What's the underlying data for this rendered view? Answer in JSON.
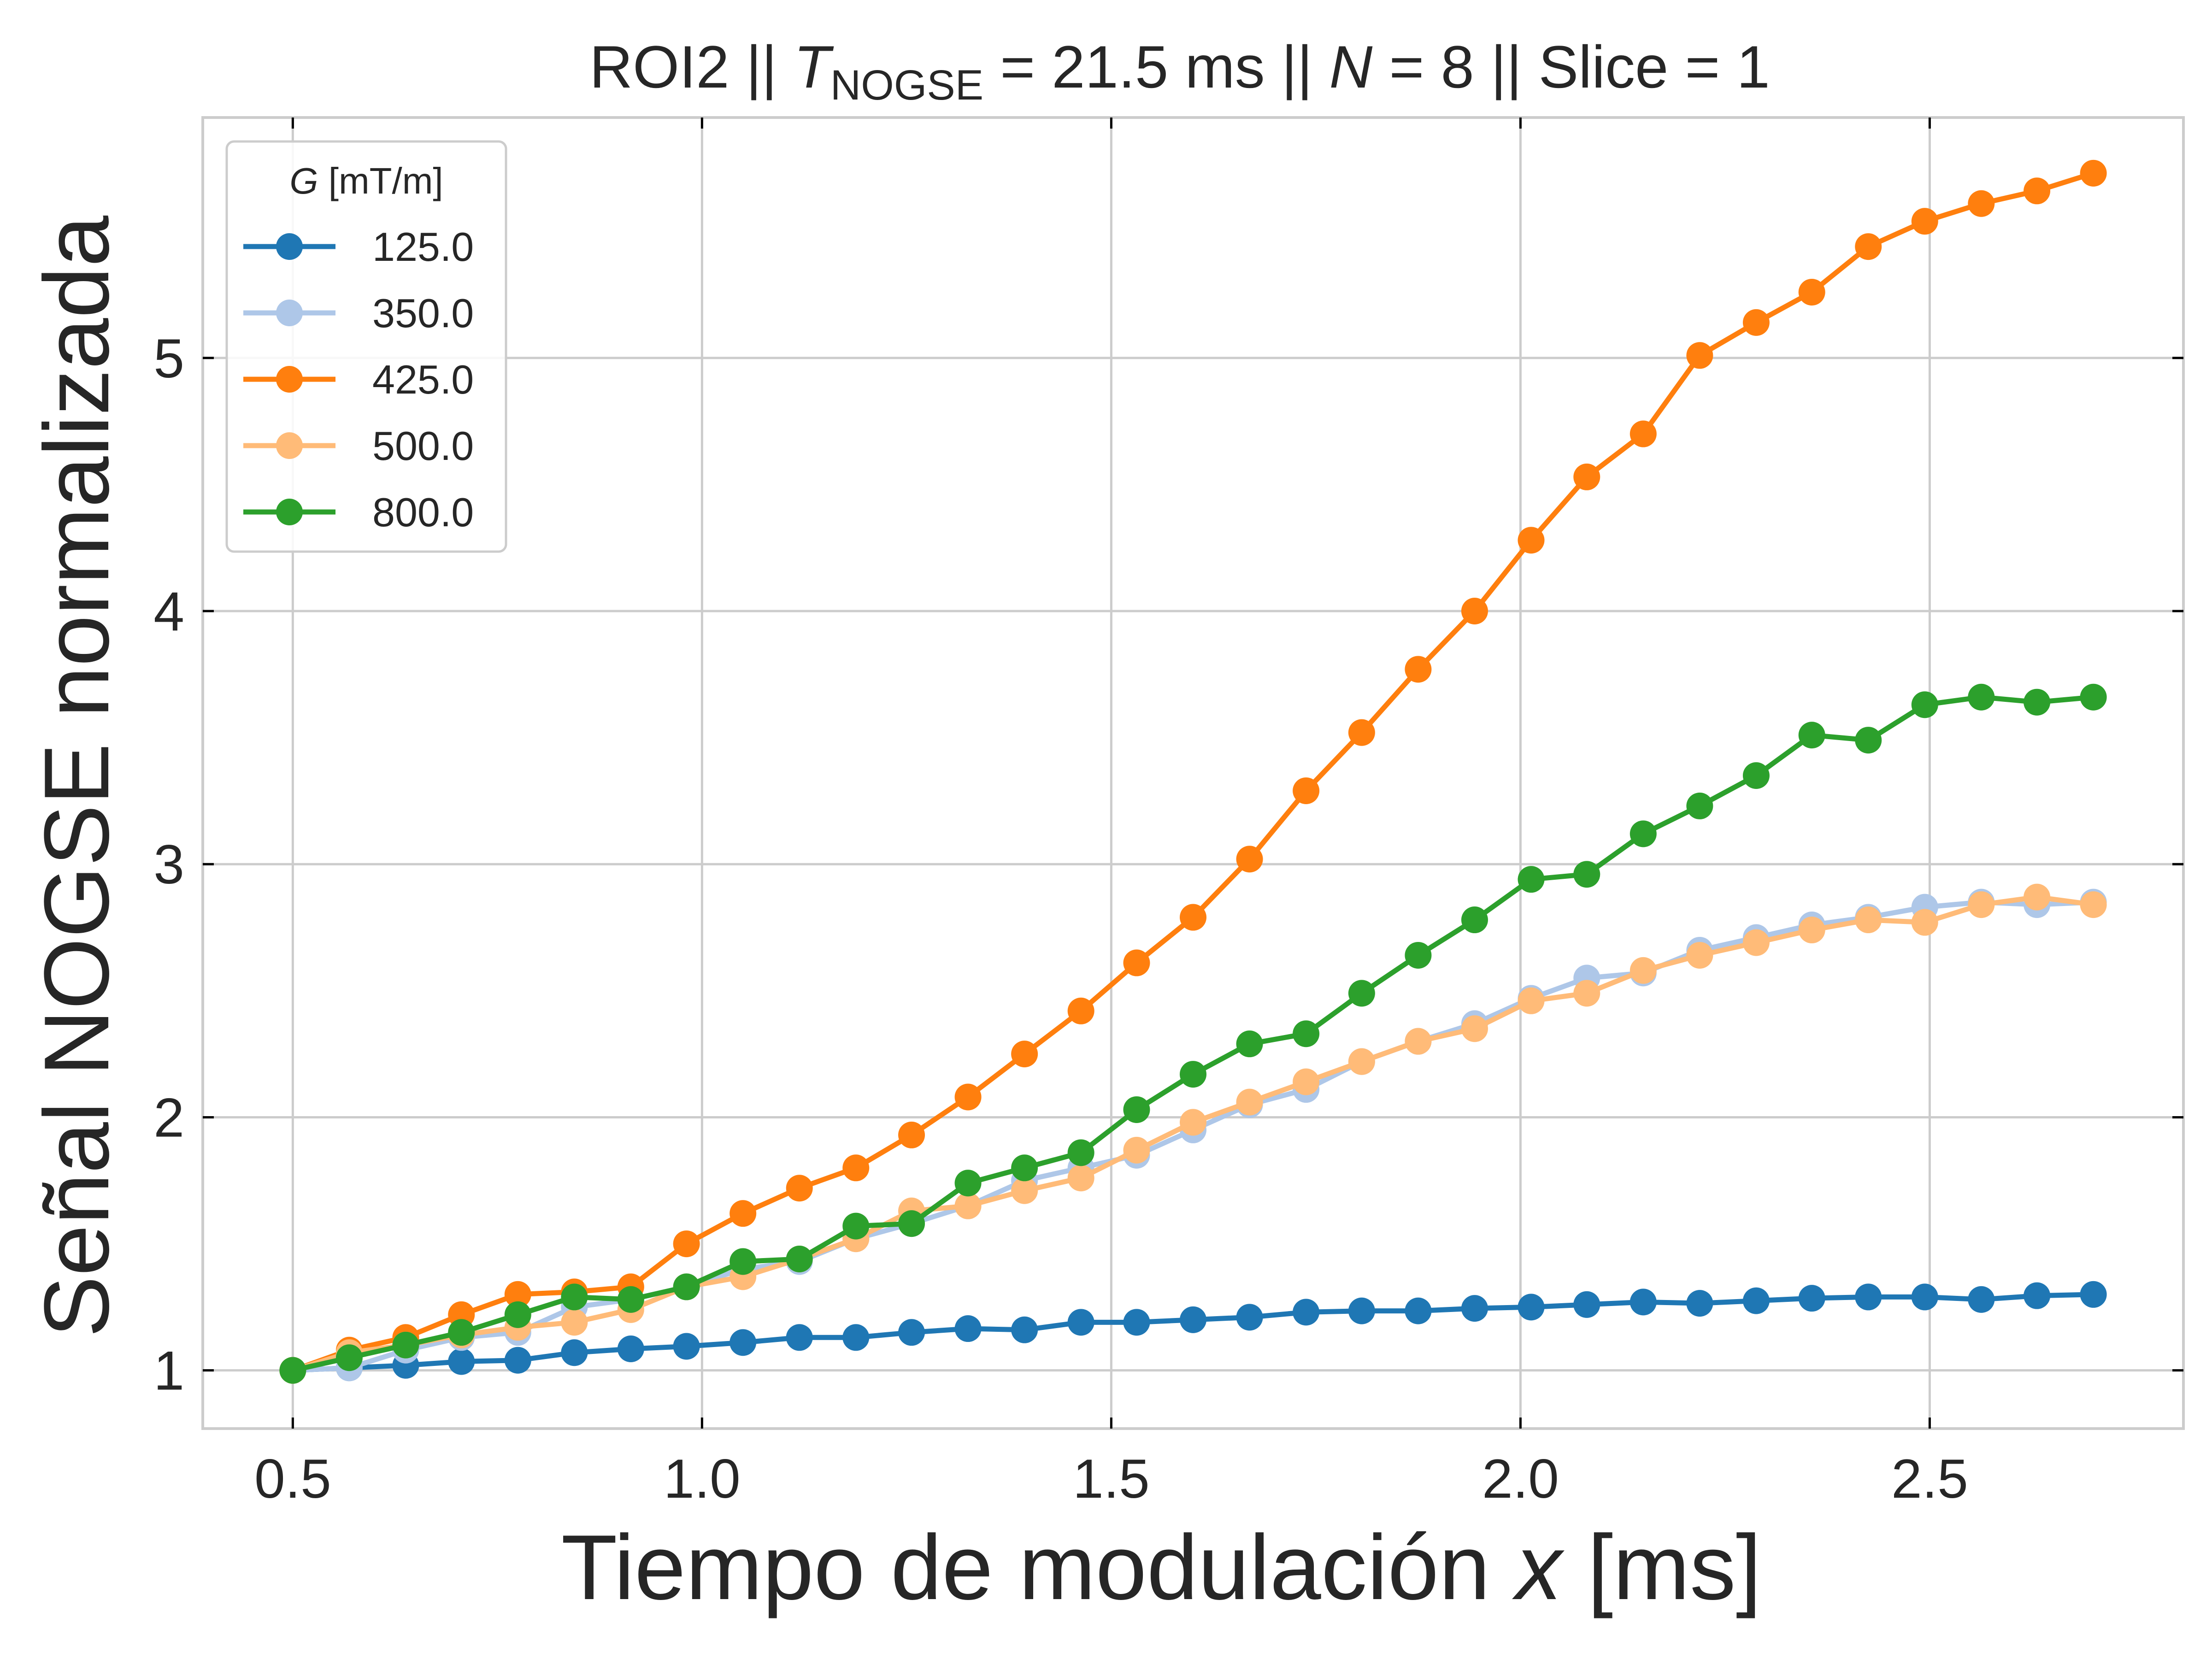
{
  "chart_data": {
    "type": "line",
    "title": {
      "prefix": "ROI2 || ",
      "t_symbol": "T",
      "t_subscript": "NOGSE",
      "t_rest": " = 21.5 ms  ||  ",
      "n_symbol": "N",
      "n_rest": " = 8 || Slice = 1"
    },
    "xlabel": {
      "text": "Tiempo de modulación ",
      "var": "x",
      "unit": " [ms]"
    },
    "ylabel": "Señal NOGSE normalizada",
    "xlim": [
      0.39,
      2.81
    ],
    "ylim": [
      0.77,
      5.95
    ],
    "x_ticks": [
      0.5,
      1.0,
      1.5,
      2.0,
      2.5
    ],
    "x_tick_labels": [
      "0.5",
      "1.0",
      "1.5",
      "2.0",
      "2.5"
    ],
    "y_ticks": [
      1,
      2,
      3,
      4,
      5
    ],
    "y_tick_labels": [
      "1",
      "2",
      "3",
      "4",
      "5"
    ],
    "grid": true,
    "legend": {
      "title_var": "G",
      "title_unit": " [mT/m]",
      "placement": "upper-left"
    },
    "x": [
      0.5,
      0.569,
      0.638,
      0.706,
      0.775,
      0.844,
      0.913,
      0.981,
      1.05,
      1.119,
      1.188,
      1.256,
      1.325,
      1.394,
      1.463,
      1.531,
      1.6,
      1.669,
      1.738,
      1.806,
      1.875,
      1.944,
      2.013,
      2.081,
      2.15,
      2.219,
      2.288,
      2.356,
      2.425,
      2.494,
      2.563,
      2.631,
      2.7
    ],
    "series": [
      {
        "name": "125.0",
        "color": "#1f77b4",
        "values": [
          1.0,
          1.01,
          1.02,
          1.035,
          1.04,
          1.07,
          1.085,
          1.095,
          1.11,
          1.13,
          1.13,
          1.15,
          1.165,
          1.16,
          1.19,
          1.19,
          1.2,
          1.21,
          1.23,
          1.235,
          1.235,
          1.245,
          1.25,
          1.26,
          1.27,
          1.265,
          1.275,
          1.285,
          1.29,
          1.29,
          1.28,
          1.295,
          1.3
        ]
      },
      {
        "name": "350.0",
        "color": "#aec7e8",
        "values": [
          1.0,
          1.01,
          1.08,
          1.13,
          1.15,
          1.25,
          1.28,
          1.33,
          1.4,
          1.43,
          1.52,
          1.58,
          1.65,
          1.75,
          1.8,
          1.85,
          1.95,
          2.05,
          2.11,
          2.22,
          2.3,
          2.37,
          2.47,
          2.55,
          2.57,
          2.66,
          2.71,
          2.76,
          2.79,
          2.83,
          2.85,
          2.84,
          2.85
        ]
      },
      {
        "name": "425.0",
        "color": "#ff7f0e",
        "values": [
          1.0,
          1.08,
          1.13,
          1.22,
          1.3,
          1.31,
          1.33,
          1.5,
          1.62,
          1.72,
          1.8,
          1.93,
          2.08,
          2.25,
          2.42,
          2.61,
          2.79,
          3.02,
          3.29,
          3.52,
          3.77,
          4.0,
          4.28,
          4.53,
          4.7,
          5.01,
          5.14,
          5.26,
          5.44,
          5.54,
          5.61,
          5.66,
          5.73
        ]
      },
      {
        "name": "500.0",
        "color": "#ffbb78",
        "values": [
          1.0,
          1.07,
          1.1,
          1.14,
          1.17,
          1.19,
          1.24,
          1.33,
          1.37,
          1.44,
          1.52,
          1.63,
          1.65,
          1.71,
          1.76,
          1.87,
          1.98,
          2.06,
          2.14,
          2.22,
          2.3,
          2.35,
          2.46,
          2.49,
          2.58,
          2.64,
          2.69,
          2.74,
          2.78,
          2.77,
          2.84,
          2.87,
          2.84
        ]
      },
      {
        "name": "800.0",
        "color": "#2ca02c",
        "values": [
          1.0,
          1.05,
          1.1,
          1.15,
          1.22,
          1.29,
          1.28,
          1.33,
          1.43,
          1.44,
          1.57,
          1.58,
          1.74,
          1.8,
          1.86,
          2.03,
          2.17,
          2.29,
          2.33,
          2.49,
          2.64,
          2.78,
          2.94,
          2.96,
          3.12,
          3.23,
          3.35,
          3.51,
          3.49,
          3.63,
          3.66,
          3.64,
          3.66
        ]
      }
    ]
  }
}
